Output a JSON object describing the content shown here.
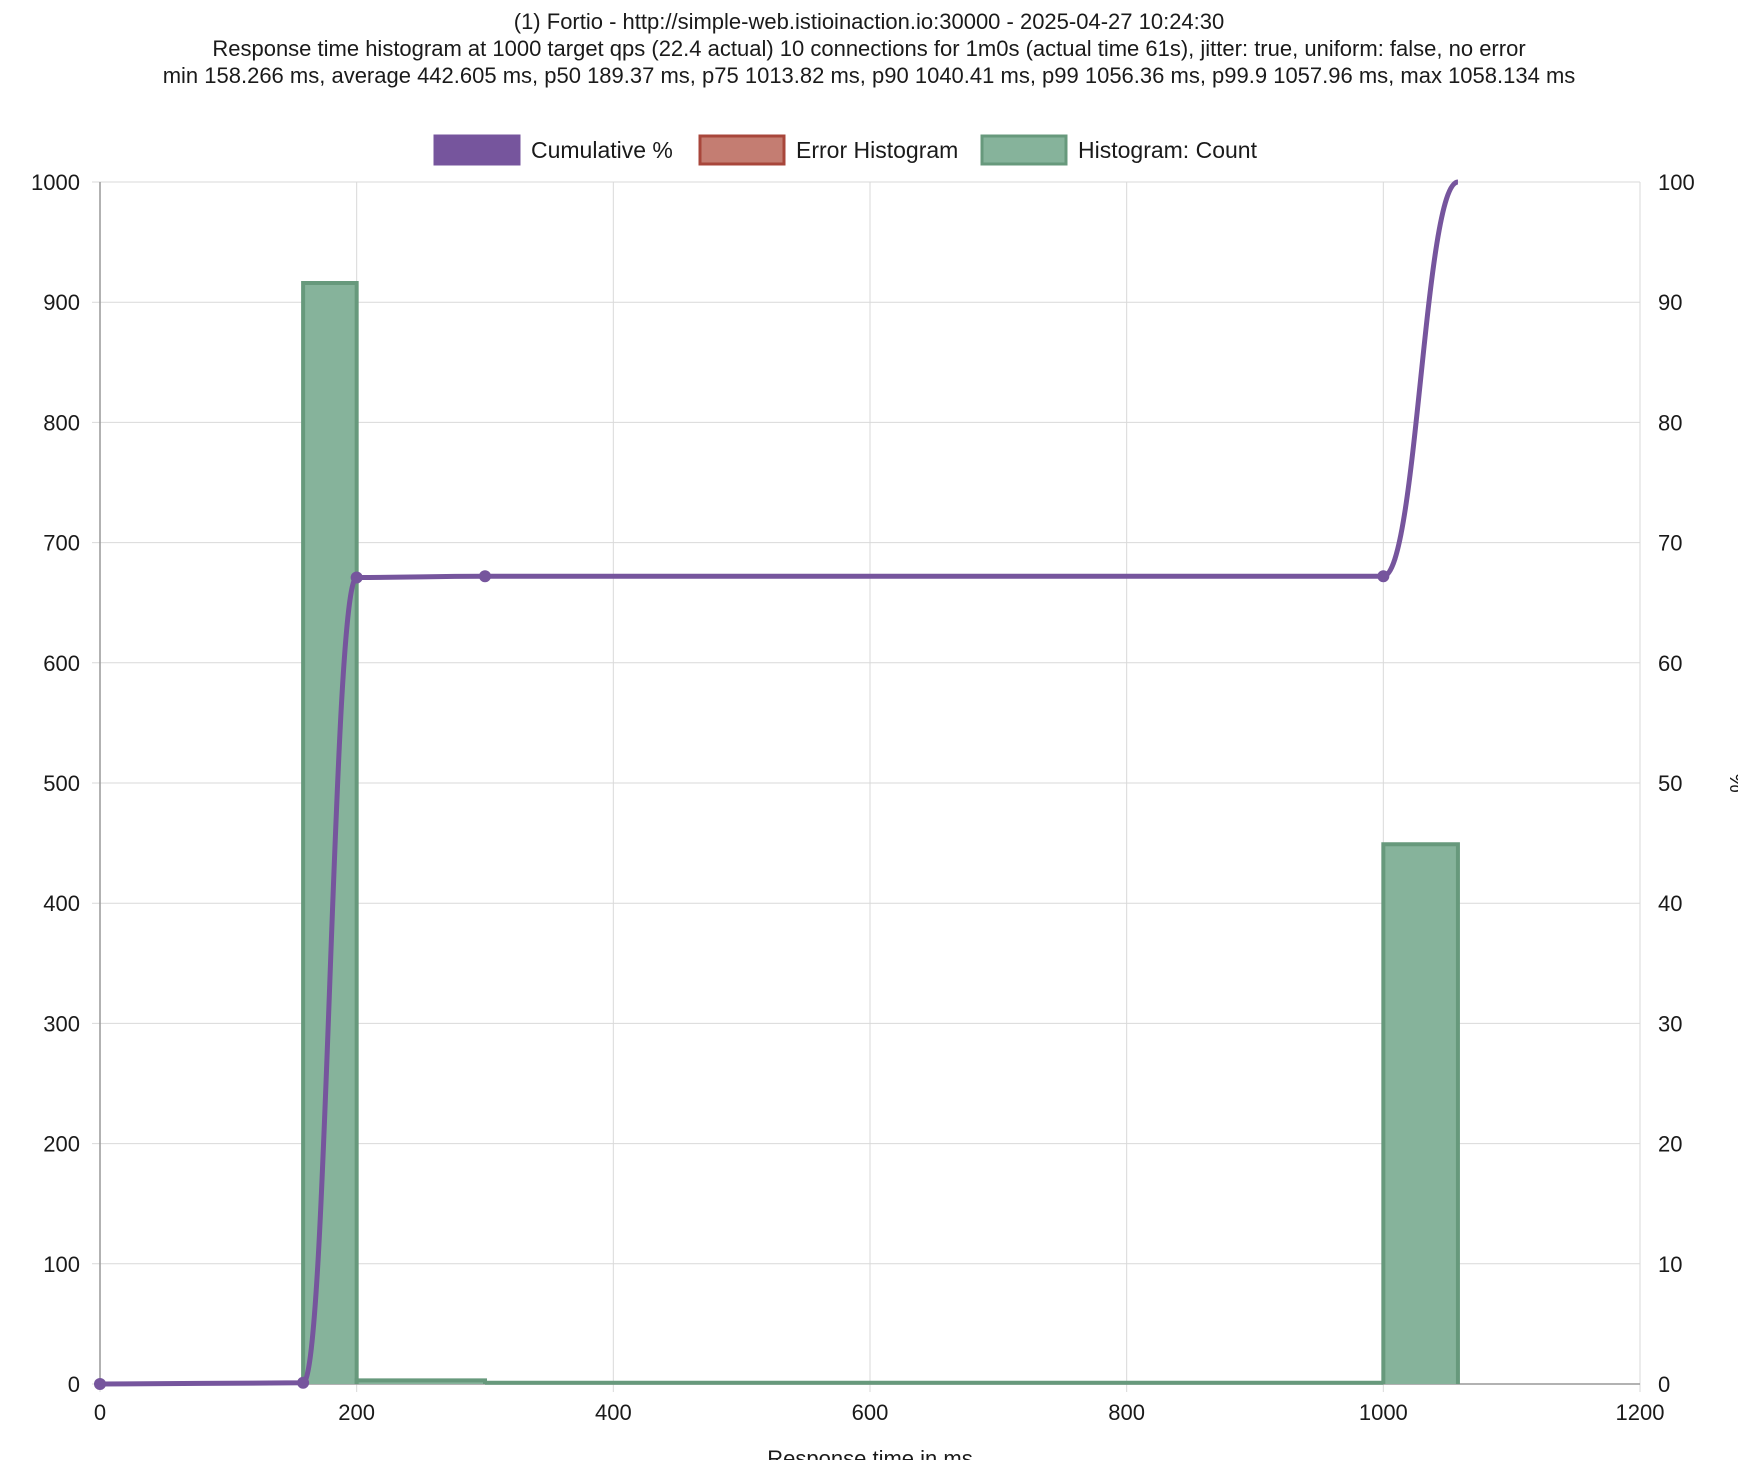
{
  "title_lines": [
    "(1) Fortio - http://simple-web.istioinaction.io:30000 - 2025-04-27 10:24:30",
    "Response time histogram at 1000 target qps (22.4 actual) 10 connections for 1m0s (actual time 61s), jitter: true, uniform: false, no error",
    "min 158.266 ms, average 442.605 ms, p50 189.37 ms, p75 1013.82 ms, p90 1040.41 ms, p99 1056.36 ms, p99.9 1057.96 ms, max 1058.134 ms"
  ],
  "colors": {
    "cumulative": "#76559d",
    "error_fill": "#c47d72",
    "error_border": "#a8463b",
    "hist_fill": "#86b39b",
    "hist_border": "#67997c",
    "grid": "#d9d9d9",
    "axis": "#999999"
  },
  "chart_data": {
    "type": "bar",
    "legend": [
      "Cumulative %",
      "Error Histogram",
      "Histogram: Count"
    ],
    "legend_position": "top",
    "grid": true,
    "xlabel": "Response time in ms",
    "y_right_label": "%",
    "xlim": [
      0,
      1200
    ],
    "ylim_left": [
      0,
      1000
    ],
    "ylim_right": [
      0,
      100
    ],
    "x_ticks": [
      "0",
      "200",
      "400",
      "600",
      "800",
      "1000",
      "1200"
    ],
    "y_left_ticks": [
      "0",
      "100",
      "200",
      "300",
      "400",
      "500",
      "600",
      "700",
      "800",
      "900",
      "1000"
    ],
    "y_right_ticks": [
      "0",
      "10",
      "20",
      "30",
      "40",
      "50",
      "60",
      "70",
      "80",
      "90",
      "100"
    ],
    "histogram_count": [
      {
        "start": 158.266,
        "end": 200,
        "count": 916
      },
      {
        "start": 200,
        "end": 300,
        "count": 3
      },
      {
        "start": 300,
        "end": 1000,
        "count": 1
      },
      {
        "start": 1000,
        "end": 1058.134,
        "count": 449
      }
    ],
    "error_histogram": [],
    "cumulative_percent": [
      {
        "x": 0,
        "y": 0
      },
      {
        "x": 158.266,
        "y": 0.1
      },
      {
        "x": 200,
        "y": 67.1
      },
      {
        "x": 300,
        "y": 67.2
      },
      {
        "x": 1000,
        "y": 67.2
      },
      {
        "x": 1058.134,
        "y": 100
      }
    ]
  }
}
